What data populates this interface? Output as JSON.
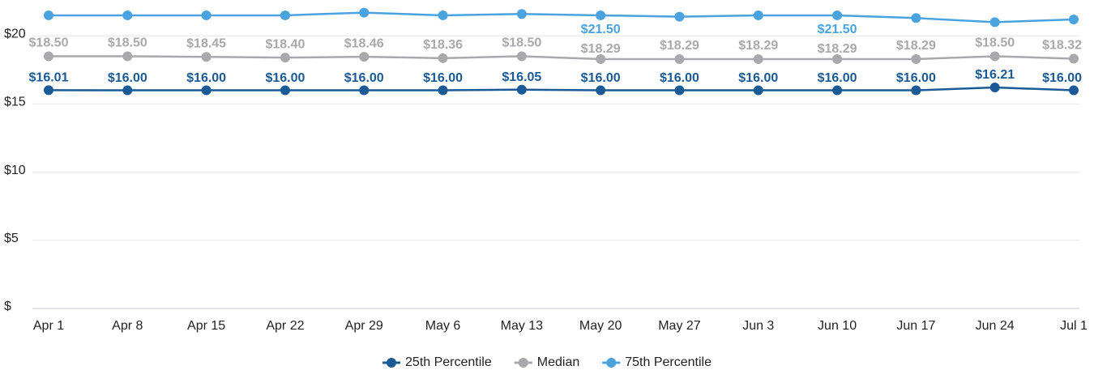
{
  "chart_data": {
    "type": "line",
    "categories": [
      "Apr 1",
      "Apr 8",
      "Apr 15",
      "Apr 22",
      "Apr 29",
      "May 6",
      "May 13",
      "May 20",
      "May 27",
      "Jun 3",
      "Jun 10",
      "Jun 17",
      "Jun 24",
      "Jul 1"
    ],
    "series": [
      {
        "name": "25th Percentile",
        "color": "#1a5a96",
        "values": [
          16.01,
          16.0,
          16.0,
          16.0,
          16.0,
          16.0,
          16.05,
          16.0,
          16.0,
          16.0,
          16.0,
          16.0,
          16.21,
          16.0
        ],
        "value_labels": [
          "$16.01",
          "$16.00",
          "$16.00",
          "$16.00",
          "$16.00",
          "$16.00",
          "$16.05",
          "$16.00",
          "$16.00",
          "$16.00",
          "$16.00",
          "$16.00",
          "$16.21",
          "$16.00"
        ]
      },
      {
        "name": "Median",
        "color": "#a9a9ad",
        "values": [
          18.5,
          18.5,
          18.45,
          18.4,
          18.46,
          18.36,
          18.5,
          18.29,
          18.29,
          18.29,
          18.29,
          18.29,
          18.5,
          18.32
        ],
        "value_labels": [
          "$18.50",
          "$18.50",
          "$18.45",
          "$18.40",
          "$18.46",
          "$18.36",
          "$18.50",
          "$18.29",
          "$18.29",
          "$18.29",
          "$18.29",
          "$18.29",
          "$18.50",
          "$18.32"
        ]
      },
      {
        "name": "75th Percentile",
        "color": "#4aa3df",
        "values": [
          21.5,
          21.5,
          21.5,
          21.5,
          21.7,
          21.5,
          21.6,
          21.5,
          21.4,
          21.5,
          21.5,
          21.3,
          21.0,
          21.2
        ],
        "value_labels": [
          null,
          null,
          null,
          null,
          null,
          null,
          null,
          "$21.50",
          null,
          null,
          "$21.50",
          null,
          null,
          null
        ]
      }
    ],
    "ylim": [
      0,
      22
    ],
    "yticks": [
      {
        "value": 0,
        "label": "$"
      },
      {
        "value": 5,
        "label": "$5"
      },
      {
        "value": 10,
        "label": "$10"
      },
      {
        "value": 15,
        "label": "$15"
      },
      {
        "value": 20,
        "label": "$20"
      }
    ],
    "grid": true,
    "legend": "bottom"
  }
}
